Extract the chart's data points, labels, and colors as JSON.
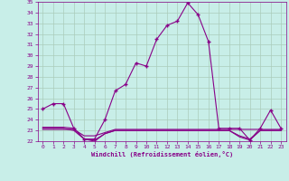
{
  "xlabel": "Windchill (Refroidissement éolien,°C)",
  "background_color": "#c8eee8",
  "line_color": "#880088",
  "grid_color": "#aaddcc",
  "xlim": [
    -0.5,
    23.5
  ],
  "ylim": [
    22,
    35
  ],
  "yticks": [
    22,
    23,
    24,
    25,
    26,
    27,
    28,
    29,
    30,
    31,
    32,
    33,
    34,
    35
  ],
  "xticks": [
    0,
    1,
    2,
    3,
    4,
    5,
    6,
    7,
    8,
    9,
    10,
    11,
    12,
    13,
    14,
    15,
    16,
    17,
    18,
    19,
    20,
    21,
    22,
    23
  ],
  "lines": [
    {
      "x": [
        0,
        1,
        2,
        3,
        4,
        5,
        6,
        7,
        8,
        9,
        10,
        11,
        12,
        13,
        14,
        15,
        16,
        17,
        18,
        19,
        20,
        21,
        22,
        23
      ],
      "y": [
        25.0,
        25.5,
        25.5,
        23.2,
        22.2,
        22.2,
        24.0,
        26.7,
        27.3,
        29.3,
        29.0,
        31.5,
        32.8,
        33.2,
        34.9,
        33.8,
        31.3,
        23.2,
        23.2,
        23.2,
        22.1,
        23.2,
        24.9,
        23.2
      ],
      "marker": "+",
      "marker_size": 3.5,
      "linewidth": 0.8,
      "with_marker": true
    },
    {
      "x": [
        0,
        1,
        2,
        3,
        4,
        5,
        6,
        7,
        8,
        9,
        10,
        11,
        12,
        13,
        14,
        15,
        16,
        17,
        18,
        19,
        20,
        21,
        22,
        23
      ],
      "y": [
        23.1,
        23.1,
        23.1,
        23.1,
        22.5,
        22.5,
        22.8,
        23.1,
        23.1,
        23.1,
        23.1,
        23.1,
        23.1,
        23.1,
        23.1,
        23.1,
        23.1,
        23.1,
        23.1,
        23.1,
        23.1,
        23.1,
        23.1,
        23.1
      ],
      "marker": null,
      "linewidth": 0.8,
      "with_marker": false
    },
    {
      "x": [
        0,
        1,
        2,
        3,
        4,
        5,
        6,
        7,
        8,
        9,
        10,
        11,
        12,
        13,
        14,
        15,
        16,
        17,
        18,
        19,
        20,
        21,
        22,
        23
      ],
      "y": [
        23.2,
        23.2,
        23.2,
        23.0,
        22.2,
        22.1,
        22.7,
        23.0,
        23.0,
        23.0,
        23.0,
        23.0,
        23.0,
        23.0,
        23.0,
        23.0,
        23.0,
        23.0,
        23.0,
        22.5,
        22.2,
        23.0,
        23.0,
        23.0
      ],
      "marker": null,
      "linewidth": 0.8,
      "with_marker": false
    },
    {
      "x": [
        0,
        1,
        2,
        3,
        4,
        5,
        6,
        7,
        8,
        9,
        10,
        11,
        12,
        13,
        14,
        15,
        16,
        17,
        18,
        19,
        20,
        21,
        22,
        23
      ],
      "y": [
        23.3,
        23.3,
        23.3,
        23.2,
        22.2,
        22.0,
        22.7,
        23.0,
        23.0,
        23.0,
        23.0,
        23.0,
        23.0,
        23.0,
        23.0,
        23.0,
        23.0,
        23.0,
        23.0,
        22.4,
        22.1,
        23.0,
        23.0,
        23.0
      ],
      "marker": null,
      "linewidth": 0.8,
      "with_marker": false
    }
  ]
}
